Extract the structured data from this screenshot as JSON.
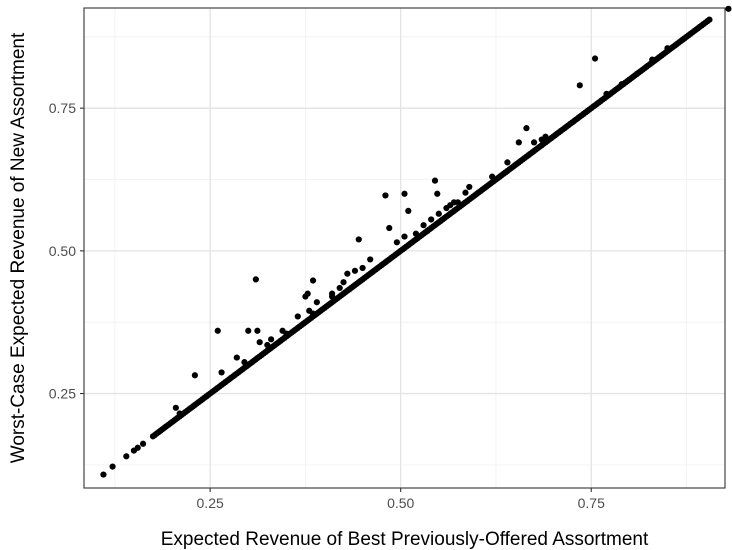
{
  "chart_data": {
    "type": "scatter",
    "title": "",
    "xlabel": "Expected Revenue of Best Previously-Offered Assortment",
    "ylabel": "Worst-Case Expected Revenue of New Assortment",
    "xlim": [
      0.0845,
      0.9255
    ],
    "ylim": [
      0.0845,
      0.9255
    ],
    "x_ticks": [
      0.25,
      0.5,
      0.75
    ],
    "y_ticks": [
      0.25,
      0.5,
      0.75
    ],
    "x_tick_labels": [
      "0.25",
      "0.50",
      "0.75"
    ],
    "y_tick_labels": [
      "0.25",
      "0.50",
      "0.75"
    ],
    "grid": true,
    "point_color": "#000000",
    "points": [
      [
        0.23,
        0.282
      ],
      [
        0.26,
        0.36
      ],
      [
        0.265,
        0.287
      ],
      [
        0.285,
        0.313
      ],
      [
        0.3,
        0.36
      ],
      [
        0.31,
        0.45
      ],
      [
        0.312,
        0.36
      ],
      [
        0.315,
        0.34
      ],
      [
        0.325,
        0.335
      ],
      [
        0.345,
        0.36
      ],
      [
        0.35,
        0.355
      ],
      [
        0.365,
        0.385
      ],
      [
        0.375,
        0.42
      ],
      [
        0.378,
        0.425
      ],
      [
        0.38,
        0.395
      ],
      [
        0.385,
        0.448
      ],
      [
        0.39,
        0.41
      ],
      [
        0.385,
        0.39
      ],
      [
        0.41,
        0.425
      ],
      [
        0.42,
        0.435
      ],
      [
        0.425,
        0.445
      ],
      [
        0.43,
        0.46
      ],
      [
        0.44,
        0.465
      ],
      [
        0.445,
        0.52
      ],
      [
        0.45,
        0.47
      ],
      [
        0.46,
        0.485
      ],
      [
        0.48,
        0.597
      ],
      [
        0.485,
        0.54
      ],
      [
        0.505,
        0.6
      ],
      [
        0.51,
        0.57
      ],
      [
        0.52,
        0.53
      ],
      [
        0.53,
        0.545
      ],
      [
        0.54,
        0.555
      ],
      [
        0.545,
        0.623
      ],
      [
        0.548,
        0.6
      ],
      [
        0.55,
        0.565
      ],
      [
        0.56,
        0.575
      ],
      [
        0.57,
        0.585
      ],
      [
        0.575,
        0.585
      ],
      [
        0.585,
        0.602
      ],
      [
        0.59,
        0.612
      ],
      [
        0.64,
        0.655
      ],
      [
        0.655,
        0.69
      ],
      [
        0.665,
        0.715
      ],
      [
        0.675,
        0.69
      ],
      [
        0.69,
        0.7
      ],
      [
        0.735,
        0.79
      ],
      [
        0.755,
        0.837
      ],
      [
        0.495,
        0.515
      ],
      [
        0.505,
        0.525
      ],
      [
        0.535,
        0.535
      ],
      [
        0.565,
        0.58
      ],
      [
        0.62,
        0.63
      ],
      [
        0.685,
        0.695
      ],
      [
        0.41,
        0.42
      ],
      [
        0.33,
        0.345
      ],
      [
        0.295,
        0.305
      ],
      [
        0.11,
        0.108
      ],
      [
        0.122,
        0.122
      ],
      [
        0.14,
        0.14
      ],
      [
        0.15,
        0.15
      ],
      [
        0.155,
        0.155
      ],
      [
        0.162,
        0.162
      ],
      [
        0.205,
        0.225
      ],
      [
        0.21,
        0.215
      ],
      [
        0.245,
        0.245
      ],
      [
        0.93,
        0.924
      ],
      [
        0.905,
        0.905
      ],
      [
        0.87,
        0.87
      ],
      [
        0.85,
        0.855
      ],
      [
        0.83,
        0.835
      ],
      [
        0.81,
        0.81
      ],
      [
        0.79,
        0.792
      ],
      [
        0.77,
        0.775
      ]
    ],
    "diagonal_segments": [
      {
        "x_start": 0.175,
        "x_end": 0.905,
        "density": "dense"
      }
    ]
  }
}
